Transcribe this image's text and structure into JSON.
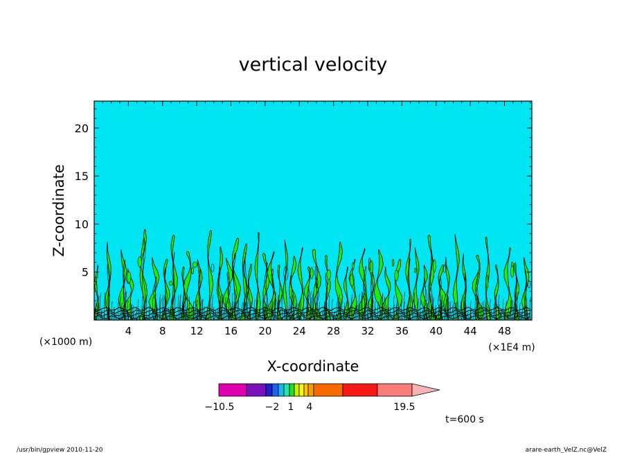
{
  "chart_data": {
    "type": "contour",
    "title": "vertical velocity",
    "xlabel": "X-coordinate",
    "ylabel": "Z-coordinate",
    "x_units_left": "(×1000 m)",
    "x_units_right": "(×1E4 m)",
    "xlim": [
      0,
      51.2
    ],
    "ylim": [
      0,
      22.8
    ],
    "x_ticks": [
      4,
      8,
      12,
      16,
      20,
      24,
      28,
      32,
      36,
      40,
      44,
      48
    ],
    "y_ticks": [
      5,
      10,
      15,
      20
    ],
    "background_color": "#00e5f2",
    "contour_fill_color": "#14f014",
    "contour_line_color": "#000000",
    "plumes": [
      {
        "x": 0.3,
        "top": 5.6
      },
      {
        "x": 1.7,
        "top": 8.0
      },
      {
        "x": 3.4,
        "top": 7.2
      },
      {
        "x": 4.2,
        "top": 5.2
      },
      {
        "x": 5.7,
        "top": 9.3
      },
      {
        "x": 7.1,
        "top": 6.4
      },
      {
        "x": 8.4,
        "top": 6.2
      },
      {
        "x": 9.3,
        "top": 8.7
      },
      {
        "x": 10.5,
        "top": 5.4
      },
      {
        "x": 11.0,
        "top": 7.0
      },
      {
        "x": 12.3,
        "top": 6.2
      },
      {
        "x": 13.5,
        "top": 9.2
      },
      {
        "x": 14.7,
        "top": 7.5
      },
      {
        "x": 15.7,
        "top": 6.3
      },
      {
        "x": 16.5,
        "top": 8.4
      },
      {
        "x": 17.6,
        "top": 7.8
      },
      {
        "x": 18.2,
        "top": 5.7
      },
      {
        "x": 19.1,
        "top": 9.0
      },
      {
        "x": 20.1,
        "top": 6.8
      },
      {
        "x": 20.8,
        "top": 7.0
      },
      {
        "x": 21.7,
        "top": 5.6
      },
      {
        "x": 22.4,
        "top": 8.2
      },
      {
        "x": 23.2,
        "top": 6.5
      },
      {
        "x": 24.2,
        "top": 7.4
      },
      {
        "x": 25.0,
        "top": 5.4
      },
      {
        "x": 26.0,
        "top": 7.2
      },
      {
        "x": 27.3,
        "top": 6.6
      },
      {
        "x": 28.6,
        "top": 8.0
      },
      {
        "x": 29.5,
        "top": 5.4
      },
      {
        "x": 30.3,
        "top": 6.2
      },
      {
        "x": 31.5,
        "top": 7.3
      },
      {
        "x": 32.5,
        "top": 6.0
      },
      {
        "x": 33.3,
        "top": 7.2
      },
      {
        "x": 34.3,
        "top": 5.4
      },
      {
        "x": 35.5,
        "top": 6.2
      },
      {
        "x": 36.8,
        "top": 8.3
      },
      {
        "x": 37.7,
        "top": 7.4
      },
      {
        "x": 38.6,
        "top": 5.6
      },
      {
        "x": 39.4,
        "top": 8.7
      },
      {
        "x": 40.6,
        "top": 5.6
      },
      {
        "x": 41.3,
        "top": 6.4
      },
      {
        "x": 42.4,
        "top": 8.8
      },
      {
        "x": 43.3,
        "top": 6.8
      },
      {
        "x": 44.8,
        "top": 6.6
      },
      {
        "x": 46.0,
        "top": 8.5
      },
      {
        "x": 47.1,
        "top": 5.6
      },
      {
        "x": 48.4,
        "top": 7.4
      },
      {
        "x": 49.4,
        "top": 5.8
      },
      {
        "x": 50.5,
        "top": 6.4
      }
    ],
    "colorbar": {
      "segments": [
        {
          "color": "#e000b0"
        },
        {
          "color": "#7a12bb"
        },
        {
          "color": "#2020c8"
        },
        {
          "color": "#1a64f0"
        },
        {
          "color": "#18b8e8"
        },
        {
          "color": "#22e4b0"
        },
        {
          "color": "#20e020"
        },
        {
          "color": "#c8f000"
        },
        {
          "color": "#f8f800"
        },
        {
          "color": "#f8c800"
        },
        {
          "color": "#f89c00"
        },
        {
          "color": "#f86a00"
        },
        {
          "color": "#f81818"
        },
        {
          "color": "#f87c78"
        }
      ],
      "arrow_color": "#f8b4b4",
      "labels": [
        "−10.5",
        "−2",
        "1",
        "4",
        "19.5"
      ]
    },
    "time_label": "t=600 s",
    "footer_left": "/usr/bin/gpview   2010-11-20",
    "footer_right": "arare-earth_VelZ.nc@VelZ"
  }
}
